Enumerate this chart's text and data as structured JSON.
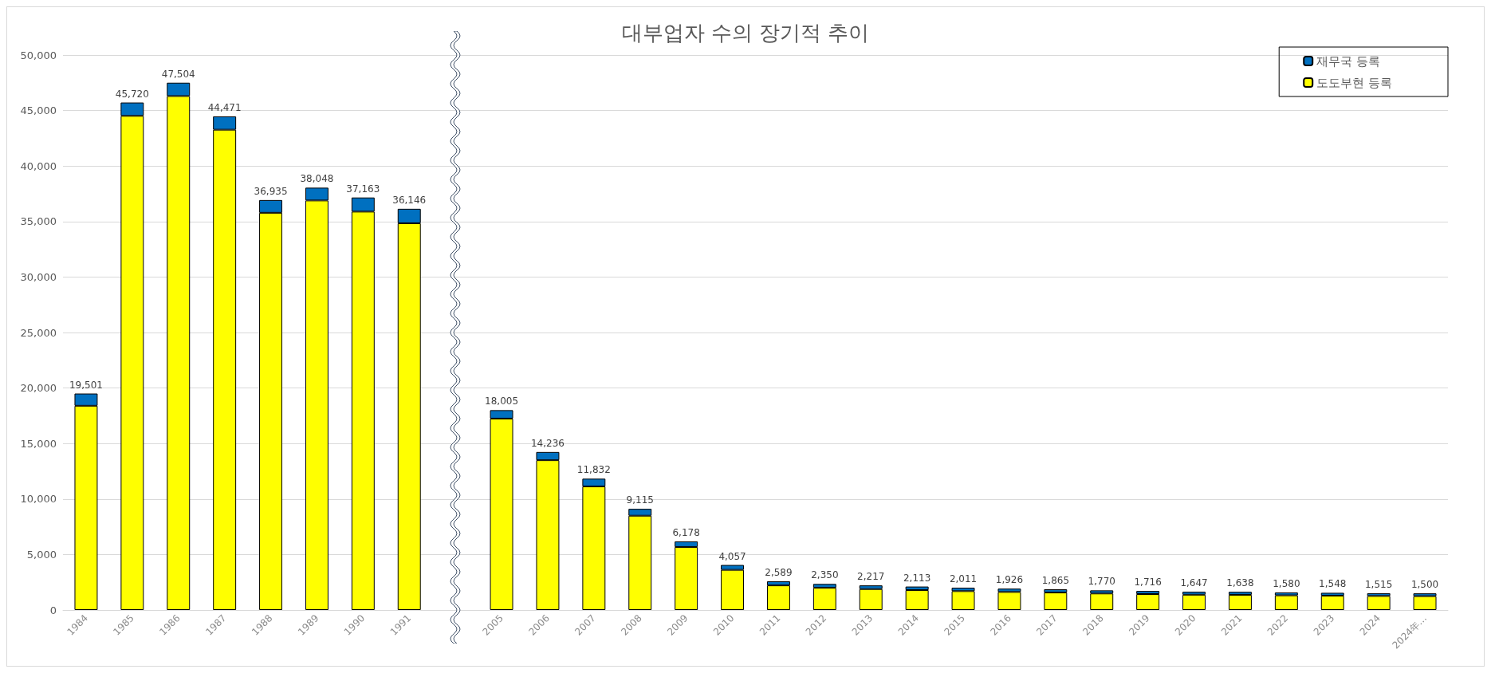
{
  "chart_data": {
    "type": "bar",
    "title": "대부업자 수의 장기적 추이",
    "categories": [
      "1984",
      "1985",
      "1986",
      "1987",
      "1988",
      "1989",
      "1990",
      "1991",
      null,
      "2005",
      "2006",
      "2007",
      "2008",
      "2009",
      "2010",
      "2011",
      "2012",
      "2013",
      "2014",
      "2015",
      "2016",
      "2017",
      "2018",
      "2019",
      "2020",
      "2021",
      "2022",
      "2023",
      "2024",
      "2024年…"
    ],
    "stacked": true,
    "series": [
      {
        "name": "도도부현 등록",
        "color": "#ffff00",
        "values": [
          18401,
          44520,
          46304,
          43271,
          35785,
          36898,
          35893,
          34846,
          null,
          17245,
          13496,
          11132,
          8495,
          5678,
          3617,
          2219,
          2000,
          1887,
          1793,
          1701,
          1626,
          1575,
          1490,
          1436,
          1377,
          1368,
          1320,
          1288,
          1265,
          1250
        ]
      },
      {
        "name": "재무국 등록",
        "color": "#0070c0",
        "values": [
          1100,
          1200,
          1200,
          1200,
          1150,
          1150,
          1270,
          1300,
          null,
          760,
          740,
          700,
          620,
          500,
          440,
          370,
          350,
          330,
          320,
          310,
          300,
          290,
          280,
          280,
          270,
          270,
          260,
          260,
          250,
          250
        ]
      }
    ],
    "totals": [
      "19,501",
      "45,720",
      "47,504",
      "44,471",
      "36,935",
      "38,048",
      "37,163",
      "36,146",
      null,
      "18,005",
      "14,236",
      "11,832",
      "9,115",
      "6,178",
      "4,057",
      "2,589",
      "2,350",
      "2,217",
      "2,113",
      "2,011",
      "1,926",
      "1,865",
      "1,770",
      "1,716",
      "1,647",
      "1,638",
      "1,580",
      "1,548",
      "1,515",
      "1,500"
    ],
    "ylim": [
      0,
      50000
    ],
    "yticks": [
      0,
      {
        "value": 5000,
        "label": "5,000"
      },
      {
        "value": 10000,
        "label": "10,000"
      },
      {
        "value": 15000,
        "label": "15,000"
      },
      {
        "value": 20000,
        "label": "20,000"
      },
      {
        "value": 25000,
        "label": "25,000"
      },
      {
        "value": 30000,
        "label": "30,000"
      },
      {
        "value": 35000,
        "label": "35,000"
      },
      {
        "value": 40000,
        "label": "40,000"
      },
      {
        "value": 45000,
        "label": "45,000"
      },
      {
        "value": 50000,
        "label": "50,000"
      }
    ],
    "grid": "y",
    "legend": "top right"
  }
}
